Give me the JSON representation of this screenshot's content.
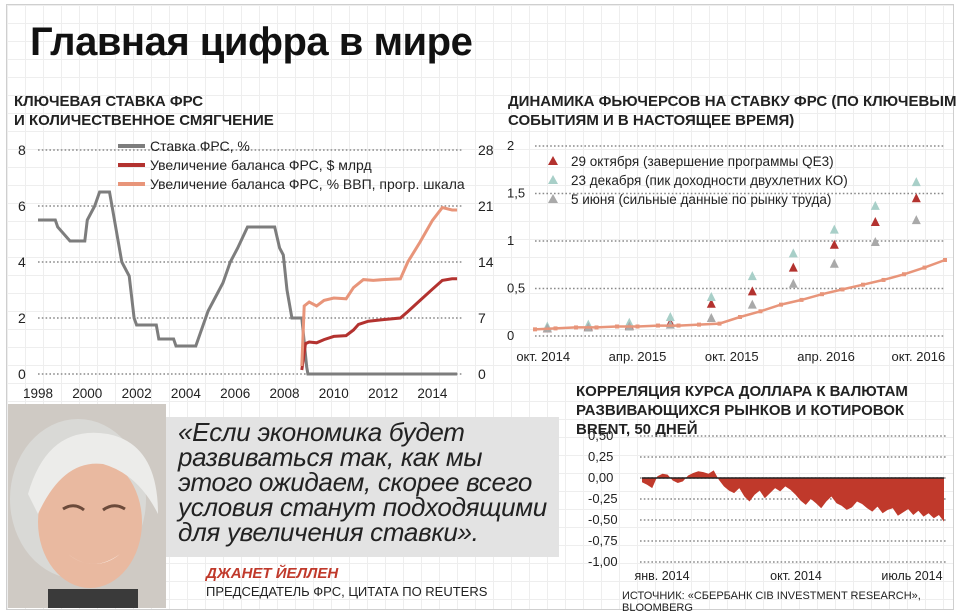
{
  "headline": "Главная цифра в мире",
  "quote": {
    "text": "«Если экономика будет развиваться так, как мы этого ожидаем, скорее всего условия станут подходящими для увеличения ставки».",
    "author": "ДЖАНЕТ ЙЕЛЛЕН",
    "role": "ПРЕДСЕДАТЕЛЬ ФРС, ЦИТАТА ПО REUTERS"
  },
  "source": "ИСТОЧНИК: «СБЕРБАНК CIB INVESTMENT RESEARCH», BLOOMBERG",
  "colors": {
    "gray": "#7d7d7d",
    "darkred": "#b3322f",
    "salmon": "#e8957a",
    "teal": "#a8cfc8",
    "red": "#c0392b"
  },
  "chart_data": [
    {
      "type": "line",
      "title_line1": "КЛЮЧЕВАЯ СТАВКА ФРС",
      "title_line2": "И КОЛИЧЕСТВЕННОЕ СМЯГЧЕНИЕ",
      "x_ticks": [
        "1998",
        "2000",
        "2002",
        "2004",
        "2006",
        "2008",
        "2010",
        "2012",
        "2014"
      ],
      "xlim": [
        1998,
        2015.2
      ],
      "y_left_ticks": [
        "0",
        "2",
        "4",
        "6",
        "8"
      ],
      "ylim_left": [
        0,
        8
      ],
      "y_right_ticks": [
        "0",
        "7",
        "14",
        "21",
        "28"
      ],
      "ylim_right": [
        0,
        28
      ],
      "grid": true,
      "legend_position": "top-left",
      "series": [
        {
          "name": "Ставка ФРС, %",
          "color": "#7d7d7d",
          "axis": "left",
          "points": [
            [
              1998,
              5.5
            ],
            [
              1998.7,
              5.5
            ],
            [
              1998.8,
              5.25
            ],
            [
              1999.3,
              4.75
            ],
            [
              1999.9,
              4.75
            ],
            [
              2000.0,
              5.5
            ],
            [
              2000.3,
              6.0
            ],
            [
              2000.5,
              6.5
            ],
            [
              2000.9,
              6.5
            ],
            [
              2001.0,
              6.0
            ],
            [
              2001.2,
              5.0
            ],
            [
              2001.4,
              4.0
            ],
            [
              2001.7,
              3.5
            ],
            [
              2001.9,
              2.0
            ],
            [
              2002.0,
              1.75
            ],
            [
              2002.8,
              1.75
            ],
            [
              2002.9,
              1.25
            ],
            [
              2003.5,
              1.25
            ],
            [
              2003.6,
              1.0
            ],
            [
              2004.4,
              1.0
            ],
            [
              2004.6,
              1.5
            ],
            [
              2004.9,
              2.25
            ],
            [
              2005.2,
              2.75
            ],
            [
              2005.5,
              3.25
            ],
            [
              2005.8,
              4.0
            ],
            [
              2006.1,
              4.5
            ],
            [
              2006.5,
              5.25
            ],
            [
              2007.6,
              5.25
            ],
            [
              2007.8,
              4.5
            ],
            [
              2007.95,
              4.25
            ],
            [
              2008.1,
              3.0
            ],
            [
              2008.3,
              2.0
            ],
            [
              2008.7,
              2.0
            ],
            [
              2008.9,
              0.25
            ],
            [
              2008.95,
              0.0
            ],
            [
              2015.0,
              0.0
            ]
          ]
        },
        {
          "name": "Увеличение баланса ФРС, $ млрд",
          "color": "#b3322f",
          "axis": "right",
          "points": [
            [
              2008.7,
              0.5
            ],
            [
              2008.85,
              3.8
            ],
            [
              2009.0,
              4.0
            ],
            [
              2009.3,
              3.9
            ],
            [
              2009.6,
              4.3
            ],
            [
              2010.0,
              4.7
            ],
            [
              2010.5,
              4.8
            ],
            [
              2010.8,
              5.5
            ],
            [
              2011.0,
              6.2
            ],
            [
              2011.4,
              6.6
            ],
            [
              2012.0,
              6.8
            ],
            [
              2012.7,
              7.0
            ],
            [
              2013.0,
              7.8
            ],
            [
              2013.5,
              9.2
            ],
            [
              2014.0,
              10.6
            ],
            [
              2014.4,
              11.7
            ],
            [
              2014.8,
              11.9
            ],
            [
              2015.0,
              11.9
            ]
          ]
        },
        {
          "name": "Увеличение баланса ФРС, % ВВП, прогр. шкала",
          "color": "#e8957a",
          "axis": "right",
          "points": [
            [
              2008.7,
              1.0
            ],
            [
              2008.8,
              8.5
            ],
            [
              2009.0,
              9.0
            ],
            [
              2009.3,
              8.5
            ],
            [
              2009.6,
              9.2
            ],
            [
              2010.0,
              9.5
            ],
            [
              2010.5,
              9.4
            ],
            [
              2010.8,
              10.8
            ],
            [
              2011.2,
              11.8
            ],
            [
              2011.6,
              11.7
            ],
            [
              2012.0,
              11.8
            ],
            [
              2012.7,
              11.9
            ],
            [
              2013.0,
              14.0
            ],
            [
              2013.5,
              16.5
            ],
            [
              2014.0,
              19.2
            ],
            [
              2014.4,
              20.8
            ],
            [
              2014.8,
              20.5
            ],
            [
              2015.0,
              20.5
            ]
          ]
        }
      ]
    },
    {
      "type": "line",
      "title_line1": "ДИНАМИКА ФЬЮЧЕРСОВ НА СТАВКУ ФРС (ПО КЛЮЧЕВЫМ",
      "title_line2": "СОБЫТИЯМ И В НАСТОЯЩЕЕ ВРЕМЯ)",
      "x_ticks": [
        "окт. 2014",
        "апр. 2015",
        "окт. 2015",
        "апр. 2016",
        "окт. 2016"
      ],
      "y_ticks": [
        "0",
        "0,5",
        "1",
        "1,5",
        "2"
      ],
      "ylim": [
        0,
        2
      ],
      "grid": true,
      "legend_position": "top-left",
      "series": [
        {
          "name": "29 октября (завершение программы QE3)",
          "color": "#b3322f",
          "marker": "triangle",
          "x": [
            0.3,
            1.3,
            2.3,
            3.3,
            4.3,
            5.3,
            6.3,
            7.3,
            8.3,
            9.3
          ],
          "values": [
            0.08,
            0.1,
            0.11,
            0.14,
            0.34,
            0.47,
            0.72,
            0.96,
            1.2,
            1.45
          ]
        },
        {
          "name": "23 декабря (пик доходности двухлетних КО)",
          "color": "#a8cfc8",
          "marker": "triangle",
          "x": [
            0.3,
            1.3,
            2.3,
            3.3,
            4.3,
            5.3,
            6.3,
            7.3,
            8.3,
            9.3
          ],
          "values": [
            0.1,
            0.12,
            0.14,
            0.2,
            0.41,
            0.63,
            0.87,
            1.12,
            1.37,
            1.62
          ]
        },
        {
          "name": "5 июня (сильные данные по рынку труда)",
          "color": "#a9a9a9",
          "marker": "triangle",
          "x": [
            0.3,
            1.3,
            2.3,
            3.3,
            4.3,
            5.3,
            6.3,
            7.3,
            8.3,
            9.3
          ],
          "values": [
            0.08,
            0.09,
            0.1,
            0.12,
            0.19,
            0.33,
            0.55,
            0.76,
            0.99,
            1.22
          ]
        },
        {
          "name": "",
          "color": "#e8957a",
          "marker": "square",
          "x": [
            0,
            0.5,
            1,
            1.5,
            2,
            2.5,
            3,
            3.5,
            4,
            4.5,
            5,
            5.5,
            6,
            6.5,
            7,
            7.5,
            8,
            8.5,
            9,
            9.5,
            10
          ],
          "values": [
            0.07,
            0.08,
            0.09,
            0.09,
            0.1,
            0.1,
            0.11,
            0.11,
            0.12,
            0.13,
            0.2,
            0.26,
            0.33,
            0.38,
            0.44,
            0.49,
            0.54,
            0.59,
            0.65,
            0.72,
            0.8
          ]
        }
      ],
      "xlim": [
        0,
        10
      ]
    },
    {
      "type": "area",
      "title_line1": "КОРРЕЛЯЦИЯ КУРСА ДОЛЛАРА К ВАЛЮТАМ",
      "title_line2": "РАЗВИВАЮЩИХСЯ РЫНКОВ И КОТИРОВОК BRENT, 50 ДНЕЙ",
      "x_ticks": [
        "янв. 2014",
        "окт. 2014",
        "июль 2014"
      ],
      "y_ticks": [
        "0,50",
        "0,25",
        "0,00",
        "-0,25",
        "-0,50",
        "-0,75",
        "-1,00"
      ],
      "ylim": [
        -1.0,
        0.5
      ],
      "grid": true,
      "color": "#c0392b",
      "values": [
        -0.05,
        -0.08,
        -0.12,
        0.02,
        0.05,
        0.04,
        -0.03,
        -0.06,
        -0.04,
        0.03,
        0.06,
        0.08,
        0.07,
        0.05,
        0.09,
        -0.02,
        -0.1,
        -0.15,
        -0.18,
        -0.12,
        -0.22,
        -0.28,
        -0.2,
        -0.15,
        -0.24,
        -0.18,
        -0.12,
        -0.16,
        -0.1,
        -0.14,
        -0.2,
        -0.27,
        -0.32,
        -0.25,
        -0.3,
        -0.36,
        -0.28,
        -0.22,
        -0.3,
        -0.33,
        -0.38,
        -0.35,
        -0.28,
        -0.31,
        -0.36,
        -0.4,
        -0.34,
        -0.42,
        -0.38,
        -0.36,
        -0.45,
        -0.41,
        -0.37,
        -0.44,
        -0.39,
        -0.46,
        -0.42,
        -0.48,
        -0.44,
        -0.52
      ]
    }
  ]
}
